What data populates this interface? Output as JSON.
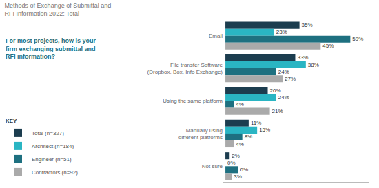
{
  "chart_data": {
    "type": "bar",
    "orientation": "horizontal",
    "title": "Methods of Exchange of Submittal and\nRFI Information 2022: Total",
    "subtitle": "For most projects, how is your\nfirm exchanging submittal and\nRFI information?",
    "legend_title": "KEY",
    "categories": [
      "Email",
      "File transfer Software\n(Dropbox, Box, Info Exchange)",
      "Using the same platform",
      "Manually using\ndifferent platforms",
      "Not sure"
    ],
    "series": [
      {
        "name": "Total (n=327)",
        "color": "#1c3d4f",
        "values": [
          35,
          33,
          20,
          11,
          2
        ],
        "value_labels": [
          "35%",
          "33%",
          "20%",
          "11%",
          "2%"
        ]
      },
      {
        "name": "Architect (n=184)",
        "color": "#2ab5c3",
        "values": [
          23,
          38,
          24,
          15,
          0
        ],
        "value_labels": [
          "23%",
          "38%",
          "24%",
          "15%",
          "0%"
        ]
      },
      {
        "name": "Engineer (n=51)",
        "color": "#1e7080",
        "values": [
          59,
          24,
          4,
          8,
          6
        ],
        "value_labels": [
          "59%",
          "24%",
          "4%",
          "8%",
          "6%"
        ]
      },
      {
        "name": "Contractors (n=92)",
        "color": "#aaaaaa",
        "values": [
          45,
          27,
          21,
          4,
          3
        ],
        "value_labels": [
          "45%",
          "27%",
          "21%",
          "4%",
          "3%"
        ]
      }
    ],
    "xlim": [
      -1,
      68
    ],
    "data_labels": true,
    "tick_labels": "y",
    "grid": false,
    "legend": "lower left"
  }
}
